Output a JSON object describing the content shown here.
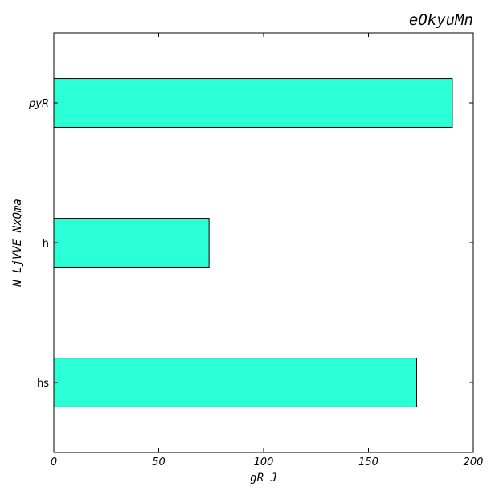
{
  "chart_data": {
    "type": "bar",
    "orientation": "horizontal",
    "title": "eOkyuMn",
    "xlabel": "gR J",
    "ylabel": "N LjVVE NxQma",
    "categories": [
      "hs",
      "h",
      "pyR"
    ],
    "values": [
      173,
      74,
      190
    ],
    "xlim": [
      0,
      200
    ],
    "xticks": [
      0,
      50,
      100,
      150,
      200
    ],
    "grid": false,
    "legend": "none",
    "colors": {
      "bar_fill": "#2affd5",
      "bar_edge": "#000000",
      "axes": "#000000"
    }
  }
}
